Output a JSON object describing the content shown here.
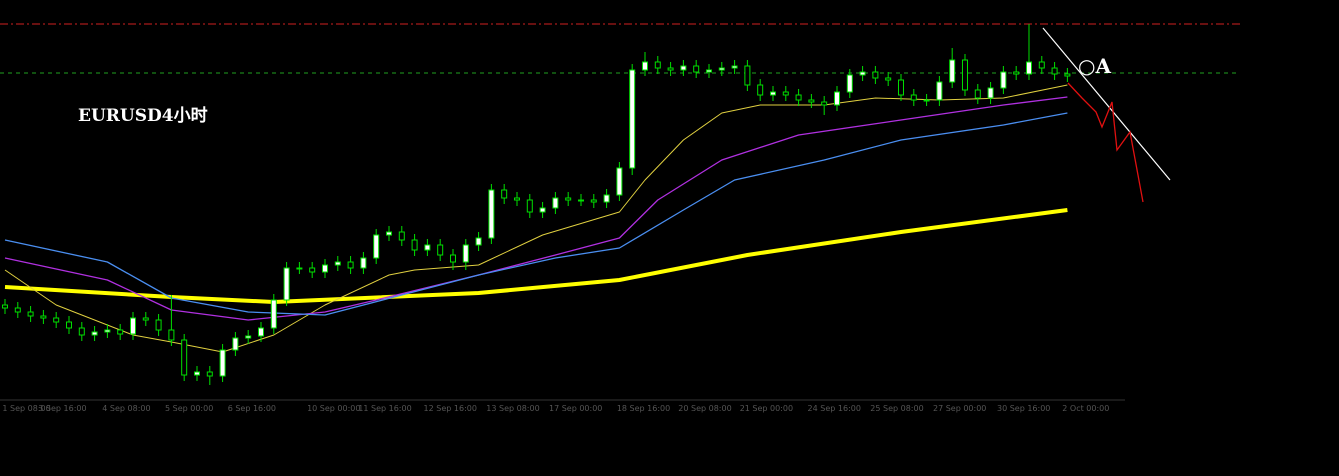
{
  "chart_data": {
    "type": "candlestick",
    "title": "EURUSD4小时",
    "annotation": "○A",
    "open": [
      95,
      92,
      88,
      84,
      82,
      78,
      72,
      65,
      68,
      70,
      66,
      82,
      80,
      70,
      60,
      25,
      28,
      24,
      50,
      62,
      64,
      72,
      100,
      132,
      132,
      128,
      135,
      138,
      132,
      142,
      165,
      168,
      160,
      150,
      155,
      145,
      138,
      155,
      162,
      210,
      202,
      200,
      188,
      192,
      202,
      200,
      200,
      198,
      205,
      232,
      330,
      338,
      332,
      330,
      334,
      328,
      330,
      332,
      334,
      315,
      305,
      308,
      305,
      300,
      298,
      295,
      308,
      325,
      328,
      322,
      320,
      305,
      300,
      300,
      318,
      340,
      310,
      302,
      312,
      328,
      326,
      338,
      332,
      326
    ],
    "high": [
      101,
      98,
      94,
      90,
      88,
      84,
      78,
      74,
      76,
      76,
      88,
      88,
      86,
      105,
      66,
      34,
      34,
      56,
      68,
      70,
      78,
      106,
      138,
      138,
      138,
      141,
      144,
      144,
      148,
      171,
      174,
      174,
      166,
      161,
      161,
      151,
      161,
      168,
      216,
      216,
      208,
      206,
      198,
      208,
      208,
      206,
      206,
      211,
      238,
      336,
      348,
      344,
      338,
      340,
      340,
      336,
      338,
      340,
      340,
      321,
      314,
      314,
      311,
      306,
      304,
      314,
      331,
      334,
      334,
      328,
      326,
      311,
      306,
      324,
      352,
      346,
      316,
      318,
      334,
      334,
      376,
      344,
      338,
      332
    ],
    "low": [
      86,
      82,
      78,
      76,
      72,
      66,
      59,
      59,
      62,
      60,
      60,
      74,
      64,
      54,
      19,
      19,
      15,
      18,
      44,
      56,
      58,
      66,
      94,
      126,
      122,
      122,
      129,
      126,
      126,
      136,
      159,
      154,
      144,
      144,
      139,
      130,
      130,
      149,
      156,
      196,
      194,
      182,
      182,
      186,
      194,
      194,
      192,
      192,
      199,
      225,
      324,
      326,
      324,
      324,
      322,
      322,
      324,
      326,
      309,
      299,
      299,
      299,
      294,
      292,
      285,
      289,
      302,
      319,
      316,
      314,
      299,
      294,
      294,
      294,
      312,
      304,
      296,
      296,
      306,
      320,
      320,
      326,
      320,
      318
    ],
    "close": [
      92,
      88,
      84,
      82,
      78,
      72,
      65,
      68,
      70,
      66,
      82,
      80,
      70,
      60,
      25,
      28,
      24,
      50,
      62,
      64,
      72,
      100,
      132,
      132,
      128,
      135,
      138,
      132,
      142,
      165,
      168,
      160,
      150,
      155,
      145,
      138,
      155,
      162,
      210,
      202,
      200,
      188,
      192,
      202,
      200,
      200,
      198,
      205,
      232,
      330,
      338,
      332,
      330,
      334,
      328,
      330,
      332,
      334,
      315,
      305,
      308,
      305,
      300,
      298,
      295,
      308,
      325,
      328,
      322,
      320,
      305,
      300,
      300,
      318,
      340,
      310,
      302,
      312,
      328,
      326,
      338,
      332,
      326,
      324
    ],
    "up_color": "#ffffff",
    "down_color": "#000000",
    "wick_color": "#00e000",
    "series": [
      {
        "color": "#ffff00",
        "width": 4,
        "x": [
          0,
          13,
          21,
          37,
          48,
          58,
          70,
          83
        ],
        "values": [
          113,
          103,
          98,
          107,
          120,
          145,
          168,
          190
        ]
      },
      {
        "color": "#e0d040",
        "width": 1,
        "x": [
          0,
          4,
          10,
          13,
          17,
          21,
          25,
          30,
          32,
          37,
          42,
          48,
          50,
          53,
          56,
          59,
          64,
          68,
          73,
          78,
          83
        ],
        "values": [
          130,
          95,
          65,
          58,
          48,
          65,
          95,
          125,
          130,
          135,
          165,
          188,
          220,
          260,
          287,
          295,
          295,
          302,
          300,
          302,
          315
        ]
      },
      {
        "color": "#b030e0",
        "width": 1.3,
        "x": [
          0,
          8,
          13,
          19,
          25,
          29,
          37,
          43,
          48,
          51,
          56,
          62,
          70,
          78,
          83
        ],
        "values": [
          142,
          120,
          90,
          80,
          88,
          100,
          125,
          145,
          162,
          200,
          240,
          265,
          280,
          295,
          303
        ]
      },
      {
        "color": "#4a8ef0",
        "width": 1.3,
        "x": [
          0,
          8,
          13,
          19,
          25,
          31,
          37,
          43,
          48,
          53,
          57,
          64,
          70,
          78,
          83
        ],
        "values": [
          160,
          138,
          102,
          88,
          85,
          105,
          125,
          142,
          152,
          190,
          220,
          240,
          260,
          275,
          287
        ]
      }
    ],
    "hlines": [
      {
        "value": 376,
        "color": "#d02020"
      },
      {
        "value": 327,
        "color": "#20a020"
      }
    ],
    "xlim": [
      -0.39,
      104.22
    ],
    "ylim": [
      0,
      400
    ],
    "xticks": [
      {
        "value": -0.2,
        "label": "1 Sep 08:00"
      },
      {
        "value": 2.6,
        "label": "3 Sep 16:00"
      },
      {
        "value": 7.6,
        "label": "4 Sep 08:00"
      },
      {
        "value": 12.5,
        "label": "5 Sep 00:00"
      },
      {
        "value": 17.4,
        "label": "6 Sep 16:00"
      },
      {
        "value": 23.6,
        "label": "10 Sep 00:00"
      },
      {
        "value": 27.6,
        "label": "11 Sep 16:00"
      },
      {
        "value": 32.7,
        "label": "12 Sep 16:00"
      },
      {
        "value": 37.6,
        "label": "13 Sep 08:00"
      },
      {
        "value": 42.5,
        "label": "17 Sep 00:00"
      },
      {
        "value": 47.8,
        "label": "18 Sep 16:00"
      },
      {
        "value": 52.6,
        "label": "20 Sep 08:00"
      },
      {
        "value": 57.4,
        "label": "21 Sep 00:00"
      },
      {
        "value": 62.7,
        "label": "24 Sep 16:00"
      },
      {
        "value": 67.6,
        "label": "25 Sep 08:00"
      },
      {
        "value": 72.5,
        "label": "27 Sep 00:00"
      },
      {
        "value": 77.5,
        "label": "30 Sep 16:00"
      },
      {
        "value": 82.6,
        "label": "2 Oct 00:00"
      }
    ]
  }
}
